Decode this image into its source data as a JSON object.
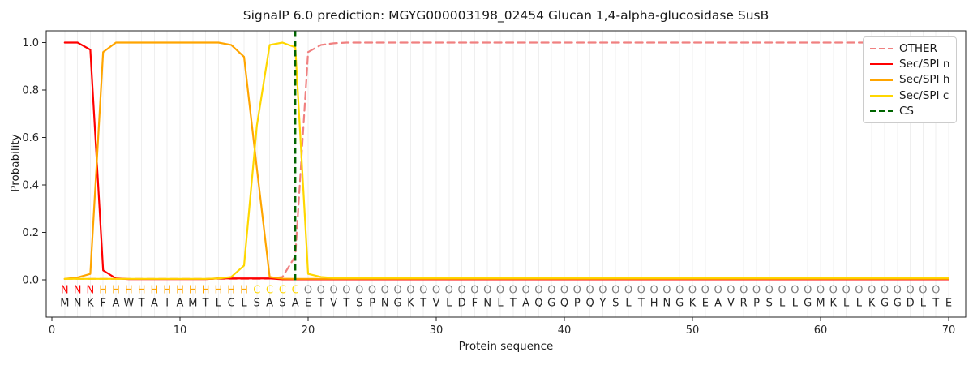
{
  "title": "SignalP 6.0 prediction: MGYG000003198_02454 Glucan 1,4-alpha-glucosidase SusB",
  "axes": {
    "xlabel": "Protein sequence",
    "ylabel": "Probability",
    "x_ticks": [
      0,
      10,
      20,
      30,
      40,
      50,
      60,
      70
    ],
    "y_ticks": [
      "0.0",
      "0.2",
      "0.4",
      "0.6",
      "0.8",
      "1.0"
    ]
  },
  "legend": {
    "items": [
      {
        "label": "OTHER",
        "color": "#F08080",
        "line_style": "dashed"
      },
      {
        "label": "Sec/SPI n",
        "color": "#FF0000",
        "line_style": "solid"
      },
      {
        "label": "Sec/SPI h",
        "color": "#FFA500",
        "line_style": "solid"
      },
      {
        "label": "Sec/SPI c",
        "color": "#FFD700",
        "line_style": "solid"
      },
      {
        "label": "CS",
        "color": "#006400",
        "line_style": "dashed"
      }
    ]
  },
  "sequence": "MNKFAWTAIAMTLCLSASAETVTSPNGKTVLDFNLTAQGQPQYSLTHNGKEAVRPSLLGMKLLKGGDLTE",
  "region_labels": "NNNHHHHHHHHHHHHCCCCOOOOOOOOOOOOOOOOOOOOOOOOOOOOOOOOOOOOOOOOOOOOOOOOOO",
  "label_colors": {
    "N": "#FF0000",
    "H": "#FFA500",
    "C": "#FFD700",
    "O": "#7F7F7F"
  },
  "sequence_color": "#262626",
  "grid_color": "#efefef",
  "chart_data": {
    "type": "line",
    "title": "SignalP 6.0 prediction: MGYG000003198_02454 Glucan 1,4-alpha-glucosidase SusB",
    "xlabel": "Protein sequence",
    "ylabel": "Probability",
    "x_range": [
      1,
      70
    ],
    "ylim": [
      0,
      1
    ],
    "xlim": [
      0,
      70
    ],
    "grid": "vertical-per-residue",
    "legend_position": "upper-right",
    "cs": {
      "position": 19,
      "color": "#006400",
      "style": "dashed"
    },
    "series": [
      {
        "name": "OTHER",
        "color": "#F08080",
        "style": "dashed",
        "values": [
          0.004,
          0.004,
          0.004,
          0.004,
          0.004,
          0.004,
          0.004,
          0.004,
          0.004,
          0.004,
          0.004,
          0.004,
          0.004,
          0.004,
          0.004,
          0.004,
          0.005,
          0.012,
          0.1,
          0.96,
          0.99,
          0.997,
          1.0,
          1.0,
          1.0,
          1.0,
          1.0,
          1.0,
          1.0,
          1.0,
          1.0,
          1.0,
          1.0,
          1.0,
          1.0,
          1.0,
          1.0,
          1.0,
          1.0,
          1.0,
          1.0,
          1.0,
          1.0,
          1.0,
          1.0,
          1.0,
          1.0,
          1.0,
          1.0,
          1.0,
          1.0,
          1.0,
          1.0,
          1.0,
          1.0,
          1.0,
          1.0,
          1.0,
          1.0,
          1.0,
          1.0,
          1.0,
          1.0,
          1.0,
          1.0,
          1.0,
          1.0,
          1.0,
          1.0,
          1.0
        ]
      },
      {
        "name": "Sec/SPI n",
        "color": "#FF0000",
        "style": "solid",
        "values": [
          1.0,
          1.0,
          0.97,
          0.04,
          0.006,
          0.003,
          0.003,
          0.003,
          0.003,
          0.003,
          0.003,
          0.003,
          0.006,
          0.006,
          0.006,
          0.006,
          0.006,
          0.002,
          0.002,
          0.002,
          0.002,
          0.002,
          0.002,
          0.002,
          0.002,
          0.002,
          0.002,
          0.002,
          0.002,
          0.002,
          0.002,
          0.002,
          0.002,
          0.002,
          0.002,
          0.002,
          0.002,
          0.002,
          0.002,
          0.002,
          0.002,
          0.002,
          0.002,
          0.002,
          0.002,
          0.002,
          0.002,
          0.002,
          0.002,
          0.002,
          0.002,
          0.002,
          0.002,
          0.002,
          0.002,
          0.002,
          0.002,
          0.002,
          0.002,
          0.002,
          0.002,
          0.002,
          0.002,
          0.002,
          0.002,
          0.002,
          0.002,
          0.002,
          0.002,
          0.002
        ]
      },
      {
        "name": "Sec/SPI h",
        "color": "#FFA500",
        "style": "solid",
        "values": [
          0.004,
          0.01,
          0.025,
          0.96,
          1.0,
          1.0,
          1.0,
          1.0,
          1.0,
          1.0,
          1.0,
          1.0,
          1.0,
          0.99,
          0.94,
          0.47,
          0.012,
          0.005,
          0.004,
          0.004,
          0.004,
          0.004,
          0.004,
          0.004,
          0.004,
          0.004,
          0.004,
          0.004,
          0.004,
          0.004,
          0.004,
          0.004,
          0.004,
          0.004,
          0.004,
          0.004,
          0.004,
          0.004,
          0.004,
          0.004,
          0.004,
          0.004,
          0.004,
          0.004,
          0.004,
          0.004,
          0.004,
          0.004,
          0.004,
          0.004,
          0.004,
          0.004,
          0.004,
          0.004,
          0.004,
          0.004,
          0.004,
          0.004,
          0.004,
          0.004,
          0.004,
          0.004,
          0.004,
          0.004,
          0.004,
          0.004,
          0.004,
          0.004,
          0.004,
          0.004
        ]
      },
      {
        "name": "Sec/SPI c",
        "color": "#FFD700",
        "style": "solid",
        "values": [
          0.004,
          0.004,
          0.004,
          0.004,
          0.004,
          0.004,
          0.004,
          0.004,
          0.004,
          0.004,
          0.004,
          0.004,
          0.006,
          0.012,
          0.06,
          0.65,
          0.99,
          1.0,
          0.98,
          0.025,
          0.012,
          0.008,
          0.008,
          0.008,
          0.008,
          0.008,
          0.008,
          0.008,
          0.008,
          0.008,
          0.008,
          0.008,
          0.008,
          0.008,
          0.008,
          0.008,
          0.008,
          0.008,
          0.008,
          0.008,
          0.008,
          0.008,
          0.008,
          0.008,
          0.008,
          0.008,
          0.008,
          0.008,
          0.008,
          0.008,
          0.008,
          0.008,
          0.008,
          0.008,
          0.008,
          0.008,
          0.008,
          0.008,
          0.008,
          0.008,
          0.008,
          0.008,
          0.008,
          0.008,
          0.008,
          0.008,
          0.008,
          0.008,
          0.008,
          0.008
        ]
      }
    ]
  }
}
